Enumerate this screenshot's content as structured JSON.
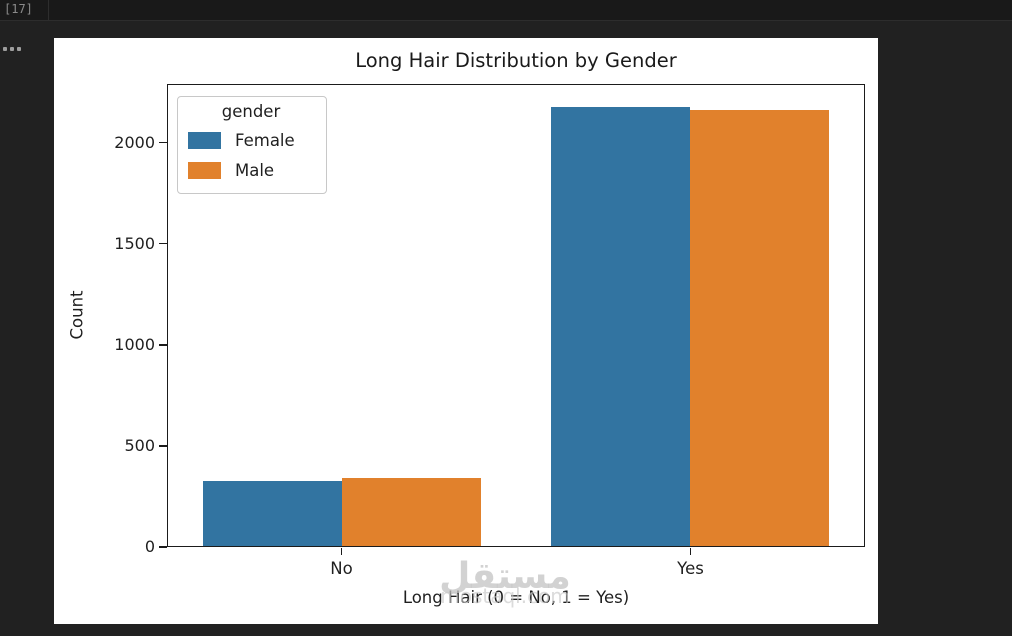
{
  "notebook": {
    "execution_count": "[17]",
    "icons": {
      "more_actions": "ellipsis-icon"
    }
  },
  "chart_data": {
    "type": "bar",
    "title": "Long Hair Distribution by Gender",
    "xlabel": "Long Hair (0 = No, 1 = Yes)",
    "ylabel": "Count",
    "categories": [
      "No",
      "Yes"
    ],
    "series": [
      {
        "name": "Female",
        "color": "#3274A1",
        "values": [
          325,
          2180
        ]
      },
      {
        "name": "Male",
        "color": "#E1812C",
        "values": [
          340,
          2165
        ]
      }
    ],
    "legend_title": "gender",
    "legend_position": "upper-left",
    "yticks": [
      0,
      500,
      1000,
      1500,
      2000
    ],
    "ylim": [
      0,
      2290
    ],
    "grid": false
  },
  "watermark": {
    "logo_text": "مستقل",
    "domain": "mostaql.com"
  },
  "colors": {
    "page_background": "#212121",
    "cell_band_background": "#191919",
    "figure_background": "#ffffff",
    "axis_text": "#1f1f1f",
    "female_bar": "#3274A1",
    "male_bar": "#E1812C"
  }
}
